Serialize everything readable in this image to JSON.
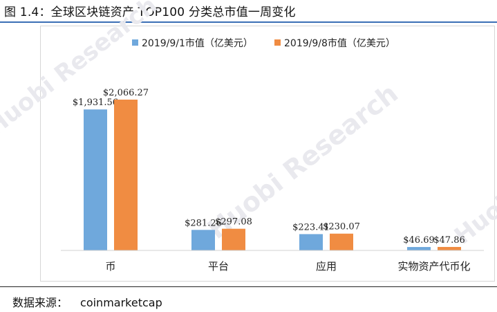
{
  "title": "图 1.4：全球区块链资产 TOP100 分类总市值一周变化",
  "source": {
    "label": "数据来源：",
    "value": "coinmarketcap"
  },
  "watermark": "Huobi Research",
  "colors": {
    "series1": "#6fa8dc",
    "series2": "#f08c42",
    "title_rule": "#3a6fb5"
  },
  "chart_data": {
    "type": "bar",
    "title": "",
    "xlabel": "",
    "ylabel": "",
    "categories": [
      "币",
      "平台",
      "应用",
      "实物资产代币化"
    ],
    "series": [
      {
        "name": "2019/9/1市值（亿美元）",
        "values": [
          1931.56,
          281.26,
          223.41,
          46.69
        ],
        "labels": [
          "$1,931.56",
          "$281.26",
          "$223.41",
          "$46.69"
        ]
      },
      {
        "name": "2019/9/8市值（亿美元）",
        "values": [
          2066.27,
          297.08,
          230.07,
          47.86
        ],
        "labels": [
          "$2,066.27",
          "$297.08",
          "$230.07",
          "$47.86"
        ]
      }
    ],
    "ylim": [
      0,
      2066.27
    ],
    "grid": false,
    "legend_position": "top"
  }
}
